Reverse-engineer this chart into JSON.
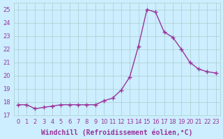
{
  "x": [
    0,
    1,
    2,
    3,
    4,
    5,
    6,
    7,
    8,
    9,
    10,
    11,
    12,
    13,
    14,
    15,
    16,
    17,
    18,
    19,
    20,
    21,
    22,
    23
  ],
  "y": [
    17.8,
    17.8,
    17.5,
    17.6,
    17.7,
    17.8,
    17.8,
    17.8,
    17.8,
    17.8,
    18.1,
    18.3,
    18.9,
    19.9,
    22.2,
    25.0,
    24.8,
    23.3,
    22.9,
    22.0,
    21.0,
    20.5,
    20.3,
    20.2
  ],
  "line_color": "#993399",
  "marker": "+",
  "marker_size": 4,
  "marker_lw": 1.0,
  "line_width": 1.0,
  "line_style": "-",
  "bg_color": "#cceeff",
  "grid_color": "#aacccc",
  "xlabel": "Windchill (Refroidissement éolien,°C)",
  "xlabel_color": "#993399",
  "tick_color": "#993399",
  "ylim": [
    17,
    25.5
  ],
  "yticks": [
    17,
    18,
    19,
    20,
    21,
    22,
    23,
    24,
    25
  ],
  "xtick_labels": [
    "0",
    "1",
    "2",
    "3",
    "4",
    "5",
    "6",
    "7",
    "8",
    "9",
    "10",
    "11",
    "12",
    "13",
    "14",
    "15",
    "16",
    "17",
    "18",
    "19",
    "20",
    "21",
    "22",
    "23"
  ],
  "axis_fontsize": 6.5,
  "tick_fontsize": 6.0,
  "xlabel_fontsize": 7.0
}
